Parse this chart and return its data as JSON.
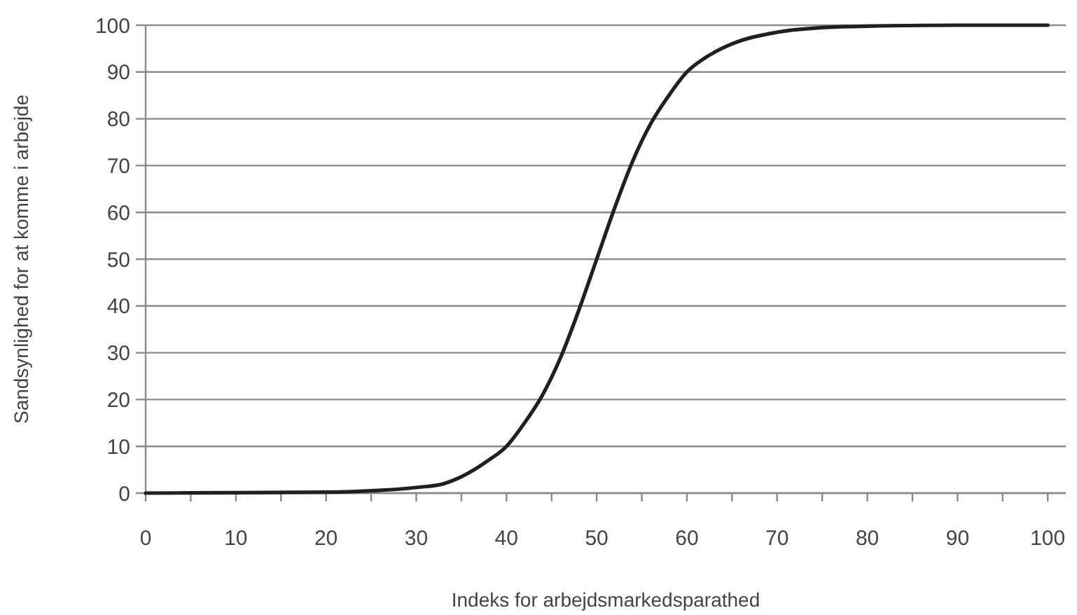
{
  "chart_data": {
    "type": "line",
    "xlabel": "Indeks for arbejdsmarkedsparathed",
    "ylabel": "Sandsynlighed for at komme i arbejde",
    "x": [
      0,
      10,
      20,
      25,
      30,
      33,
      35,
      38,
      40,
      42,
      44,
      46,
      48,
      50,
      52,
      54,
      56,
      58,
      60,
      62,
      65,
      70,
      75,
      80,
      90,
      100
    ],
    "series": [
      {
        "color": "#231f20",
        "values": [
          0,
          0.1,
          0.2,
          0.5,
          1.2,
          2,
          3.5,
          7,
          10,
          15,
          21,
          29,
          39,
          50,
          61,
          71,
          79,
          85,
          90,
          93,
          96,
          98.5,
          99.5,
          99.8,
          100,
          100
        ]
      }
    ],
    "xlim": [
      0,
      102
    ],
    "xticks": [
      0,
      {
        "value": 5,
        "label": null
      },
      10,
      {
        "value": 15,
        "label": null
      },
      20,
      {
        "value": 25,
        "label": null
      },
      30,
      {
        "value": 35,
        "label": null
      },
      40,
      {
        "value": 45,
        "label": null
      },
      50,
      {
        "value": 55,
        "label": null
      },
      60,
      {
        "value": 65,
        "label": null
      },
      70,
      {
        "value": 75,
        "label": null
      },
      80,
      {
        "value": 85,
        "label": null
      },
      90,
      {
        "value": 95,
        "label": null
      },
      100
    ],
    "ylim": [
      0,
      100
    ],
    "yticks": [
      0,
      10,
      20,
      30,
      40,
      50,
      60,
      70,
      80,
      90,
      100
    ],
    "grid": "y",
    "marker": "none",
    "line_style": "solid"
  }
}
